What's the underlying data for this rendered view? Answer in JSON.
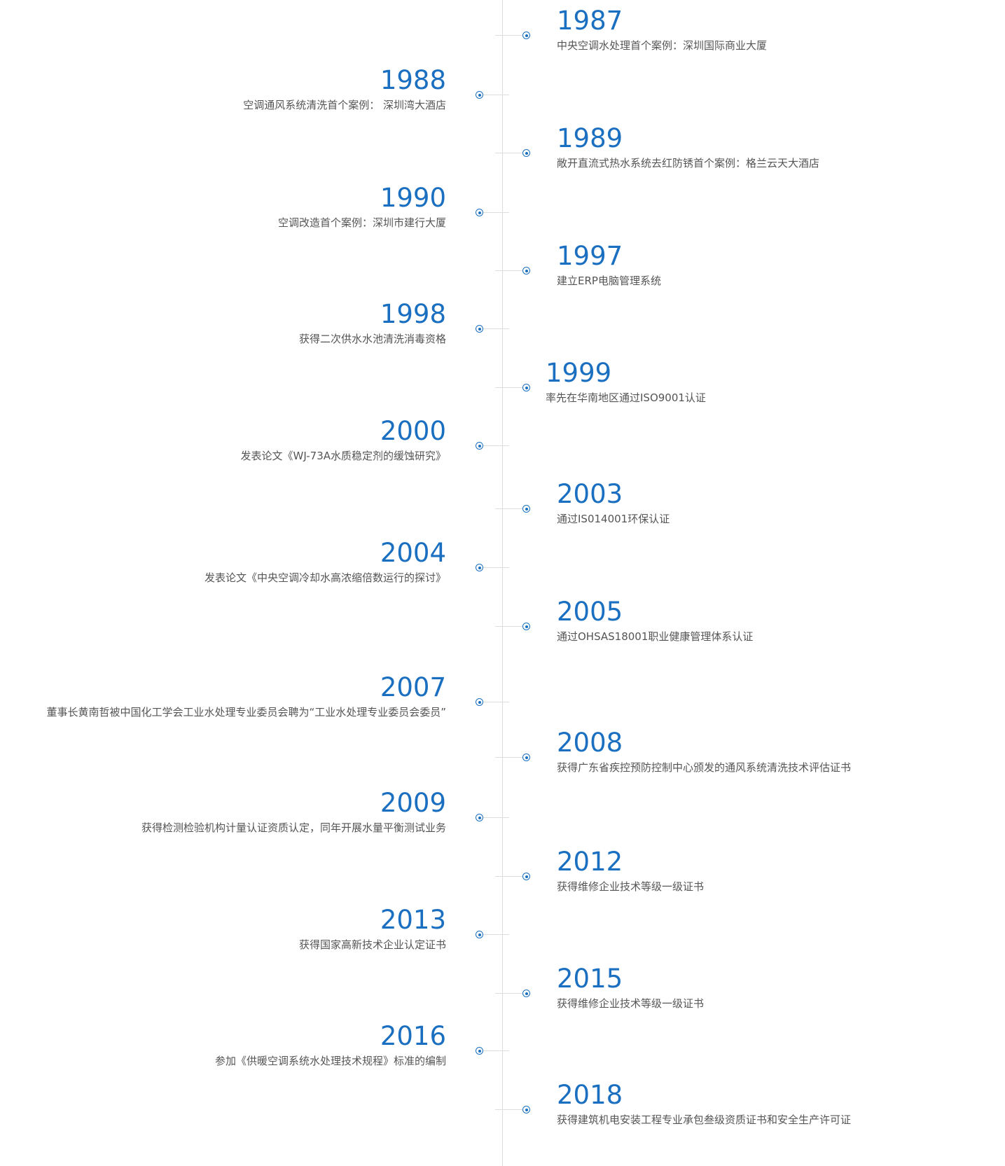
{
  "timeline": [
    {
      "year": "1987",
      "text": "中央空调水处理首个案例：深圳国际商业大厦"
    },
    {
      "year": "1988",
      "text": "空调通风系统清洗首个案例：  深圳湾大酒店"
    },
    {
      "year": "1989",
      "text": "敞开直流式热水系统去红防锈首个案例：格兰云天大酒店"
    },
    {
      "year": "1990",
      "text": "空调改造首个案例：深圳市建行大厦"
    },
    {
      "year": "1997",
      "text": "建立ERP电脑管理系统"
    },
    {
      "year": "1998",
      "text": "获得二次供水水池清洗消毒资格"
    },
    {
      "year": "1999",
      "text": "率先在华南地区通过ISO9001认证"
    },
    {
      "year": "2000",
      "text": "发表论文《WJ-73A水质稳定剂的缓蚀研究》"
    },
    {
      "year": "2003",
      "text": "通过IS014001环保认证"
    },
    {
      "year": "2004",
      "text": "发表论文《中央空调冷却水高浓缩倍数运行的探讨》"
    },
    {
      "year": "2005",
      "text": "通过OHSAS18001职业健康管理体系认证"
    },
    {
      "year": "2007",
      "text": "董事长黄南哲被中国化工学会工业水处理专业委员会聘为“工业水处理专业委员会委员”"
    },
    {
      "year": "2008",
      "text": "获得广东省疾控预防控制中心颁发的通风系统清洗技术评估证书"
    },
    {
      "year": "2009",
      "text": "获得检测检验机构计量认证资质认定，同年开展水量平衡测试业务"
    },
    {
      "year": "2012",
      "text": "获得维修企业技术等级一级证书"
    },
    {
      "year": "2013",
      "text": "获得国家高新技术企业认定证书"
    },
    {
      "year": "2015",
      "text": "获得维修企业技术等级一级证书"
    },
    {
      "year": "2016",
      "text": "参加《供暖空调系统水处理技术规程》标准的编制"
    },
    {
      "year": "2018",
      "text": "获得建筑机电安装工程专业承包叁级资质证书和安全生产许可证"
    }
  ]
}
